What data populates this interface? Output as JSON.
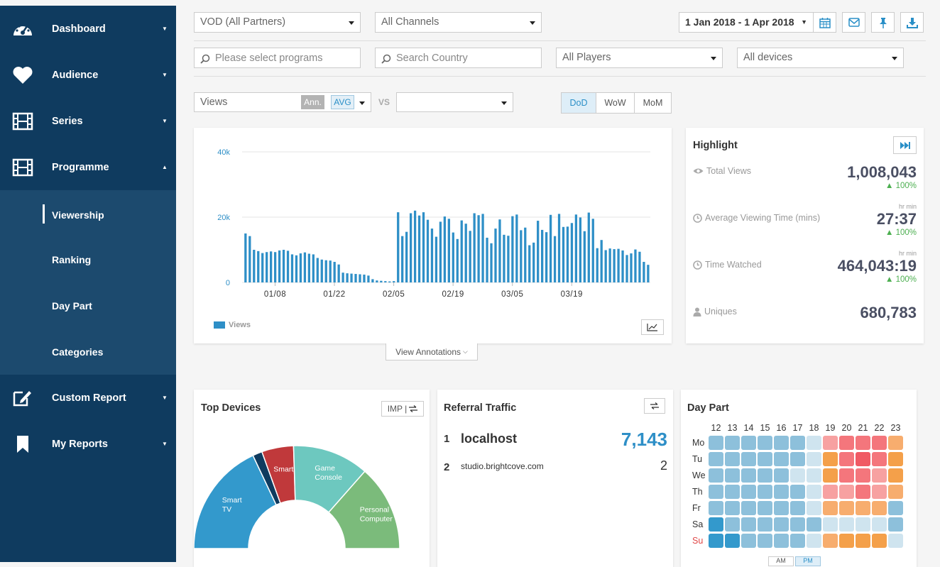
{
  "sidebar": {
    "items": [
      {
        "label": "Dashboard",
        "icon": "gauge-icon",
        "caret": "▼"
      },
      {
        "label": "Audience",
        "icon": "heart-icon",
        "caret": "▼"
      },
      {
        "label": "Series",
        "icon": "film-icon",
        "caret": "▼"
      },
      {
        "label": "Programme",
        "icon": "film-icon",
        "caret": "▲"
      }
    ],
    "subitems": [
      {
        "label": "Viewership",
        "active": true
      },
      {
        "label": "Ranking"
      },
      {
        "label": "Day Part"
      },
      {
        "label": "Categories"
      }
    ],
    "bottom_items": [
      {
        "label": "Custom Report",
        "icon": "edit-icon",
        "caret": "▼"
      },
      {
        "label": "My Reports",
        "icon": "bookmark-icon",
        "caret": "▼"
      }
    ]
  },
  "filters": {
    "partner": "VOD (All Partners)",
    "channels": "All Channels",
    "date_range": "1 Jan 2018 - 1 Apr 2018",
    "programs_placeholder": "Please select programs",
    "country_placeholder": "Search Country",
    "players": "All Players",
    "devices": "All devices"
  },
  "metric": {
    "value": "Views",
    "ann_label": "Ann.",
    "avg_label": "AVG",
    "vs_label": "VS",
    "compare_value": "",
    "periods": [
      "DoD",
      "WoW",
      "MoM"
    ],
    "active_period": "DoD"
  },
  "chart_data": {
    "type": "bar",
    "x_ticks": [
      "01/08",
      "01/22",
      "02/05",
      "02/19",
      "03/05",
      "03/19"
    ],
    "y_ticks": [
      "0",
      "20k",
      "40k"
    ],
    "ylim": [
      0,
      40000
    ],
    "legend": "Views",
    "series": [
      {
        "name": "Views",
        "values": [
          15000,
          14200,
          10000,
          9600,
          9000,
          9300,
          9500,
          9300,
          9800,
          10000,
          9700,
          8600,
          8300,
          8900,
          9200,
          8800,
          8600,
          7500,
          7000,
          6800,
          6700,
          6300,
          5500,
          3000,
          2800,
          2700,
          2600,
          2500,
          2400,
          2100,
          1000,
          600,
          500,
          400,
          300,
          400,
          21500,
          14200,
          15500,
          21200,
          22000,
          20500,
          21500,
          19200,
          16500,
          14000,
          18600,
          20200,
          19500,
          15300,
          13300,
          19000,
          18000,
          15800,
          21200,
          20600,
          21000,
          13700,
          12000,
          16500,
          19300,
          14600,
          14300,
          20300,
          20800,
          16000,
          16800,
          11400,
          12200,
          18900,
          16100,
          15400,
          20700,
          14200,
          21000,
          17000,
          17100,
          18200,
          20800,
          19900,
          15700,
          21400,
          19500,
          10500,
          13000,
          9900,
          10400,
          10200,
          10300,
          9800,
          8400,
          8900,
          10100,
          9400,
          6300,
          5400
        ]
      }
    ]
  },
  "annotations_button": "View Annotations",
  "highlight": {
    "title": "Highlight",
    "items": [
      {
        "label": "Total Views",
        "icon": "eye-icon",
        "value": "1,008,043",
        "delta": "▲ 100%",
        "units": ""
      },
      {
        "label": "Average Viewing Time (mins)",
        "icon": "clock-icon",
        "value": "27:37",
        "delta": "▲ 100%",
        "units": "hr   min"
      },
      {
        "label": "Time Watched",
        "icon": "clock-icon",
        "value": "464,043:19",
        "delta": "▲ 100%",
        "units": "hr   min"
      },
      {
        "label": "Uniques",
        "icon": "user-icon",
        "value": "680,783",
        "delta": "",
        "units": ""
      }
    ]
  },
  "top_devices": {
    "title": "Top Devices",
    "toggle": "IMP |",
    "slices": [
      {
        "label": "Smart TV",
        "lines": [
          "Smart",
          "TV"
        ],
        "value": 36,
        "color": "#3399cc"
      },
      {
        "label": "",
        "lines": [],
        "value": 3,
        "color": "#0f3b5f"
      },
      {
        "label": "Smartphone",
        "lines": [
          "Smartphone"
        ],
        "value": 10,
        "color": "#c0393b"
      },
      {
        "label": "Game Console",
        "lines": [
          "Game",
          "Console"
        ],
        "value": 24,
        "color": "#6dc8bf"
      },
      {
        "label": "Personal Computer",
        "lines": [
          "Personal",
          "Computer"
        ],
        "value": 27,
        "color": "#7bbb7b"
      }
    ]
  },
  "referral": {
    "title": "Referral Traffic",
    "rows": [
      {
        "rank": "1",
        "name": "localhost",
        "value": "7,143"
      },
      {
        "rank": "2",
        "name": "studio.brightcove.com",
        "value": "2"
      }
    ]
  },
  "day_part": {
    "title": "Day Part",
    "hours": [
      "12",
      "13",
      "14",
      "15",
      "16",
      "17",
      "18",
      "19",
      "20",
      "21",
      "22",
      "23"
    ],
    "days": [
      "Mo",
      "Tu",
      "We",
      "Th",
      "Fr",
      "Sa",
      "Su"
    ],
    "am_label": "AM",
    "pm_label": "PM",
    "grid": [
      [
        "#8dc0db",
        "#8dc0db",
        "#8dc0db",
        "#8dc0db",
        "#8dc0db",
        "#8dc0db",
        "#cfe4ef",
        "#f7a1a1",
        "#f4767c",
        "#f4767c",
        "#f4767c",
        "#f7ad6e"
      ],
      [
        "#8dc0db",
        "#8dc0db",
        "#8dc0db",
        "#8dc0db",
        "#8dc0db",
        "#8dc0db",
        "#cfe4ef",
        "#f4a04a",
        "#f4767c",
        "#f05a64",
        "#f4767c",
        "#f4a04a"
      ],
      [
        "#8dc0db",
        "#8dc0db",
        "#8dc0db",
        "#8dc0db",
        "#8dc0db",
        "#cfe4ef",
        "#cfe4ef",
        "#f4a04a",
        "#f4767c",
        "#f4767c",
        "#f7a1a1",
        "#f4a04a"
      ],
      [
        "#8dc0db",
        "#8dc0db",
        "#8dc0db",
        "#8dc0db",
        "#8dc0db",
        "#8dc0db",
        "#cfe4ef",
        "#f7a1a1",
        "#f7a1a1",
        "#f4767c",
        "#f7a1a1",
        "#f7ad6e"
      ],
      [
        "#8dc0db",
        "#8dc0db",
        "#8dc0db",
        "#8dc0db",
        "#8dc0db",
        "#8dc0db",
        "#cfe4ef",
        "#f7ad6e",
        "#f7ad6e",
        "#f7ad6e",
        "#f7ad6e",
        "#8dc0db"
      ],
      [
        "#3399cc",
        "#8dc0db",
        "#8dc0db",
        "#8dc0db",
        "#8dc0db",
        "#8dc0db",
        "#8dc0db",
        "#cfe4ef",
        "#cfe4ef",
        "#cfe4ef",
        "#cfe4ef",
        "#8dc0db"
      ],
      [
        "#3399cc",
        "#3399cc",
        "#8dc0db",
        "#8dc0db",
        "#8dc0db",
        "#8dc0db",
        "#cfe4ef",
        "#f7ad6e",
        "#f4a04a",
        "#f4a04a",
        "#f4a04a",
        "#cfe4ef"
      ]
    ]
  }
}
